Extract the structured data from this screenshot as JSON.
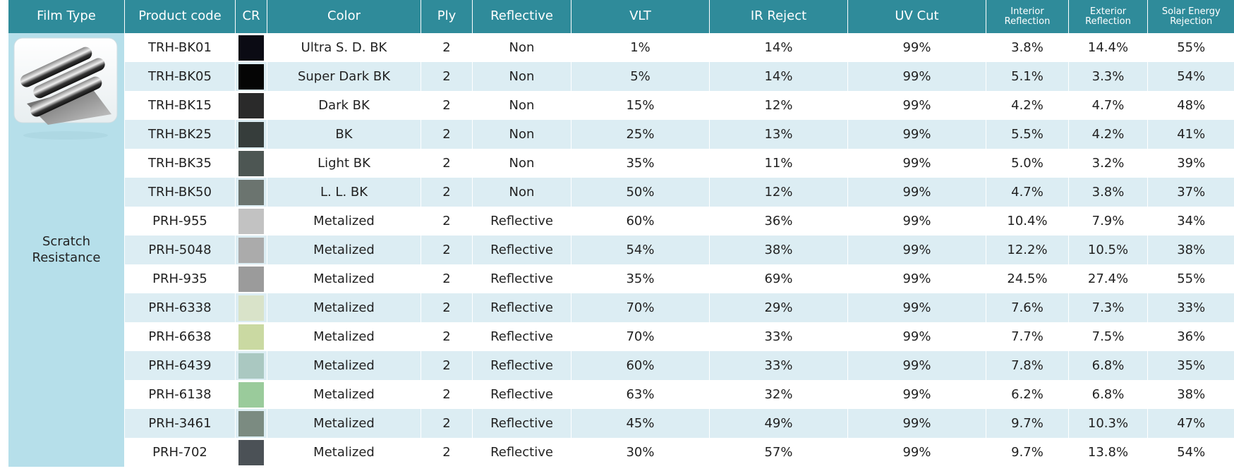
{
  "table": {
    "headers": [
      "Film Type",
      "Product code",
      "CR",
      "Color",
      "Ply",
      "Reflective",
      "VLT",
      "IR Reject",
      "UV Cut",
      "Interior Reflection",
      "Exterior Reflection",
      "Solar Energy Rejection"
    ],
    "film_type": "Scratch Resistance",
    "rows": [
      [
        "TRH-BK01",
        "Ultra S. D. BK",
        "2",
        "Non",
        "1%",
        "14%",
        "99%",
        "3.8%",
        "14.4%",
        "55%"
      ],
      [
        "TRH-BK05",
        "Super Dark BK",
        "2",
        "Non",
        "5%",
        "14%",
        "99%",
        "5.1%",
        "3.3%",
        "54%"
      ],
      [
        "TRH-BK15",
        "Dark BK",
        "2",
        "Non",
        "15%",
        "12%",
        "99%",
        "4.2%",
        "4.7%",
        "48%"
      ],
      [
        "TRH-BK25",
        "BK",
        "2",
        "Non",
        "25%",
        "13%",
        "99%",
        "5.5%",
        "4.2%",
        "41%"
      ],
      [
        "TRH-BK35",
        "Light BK",
        "2",
        "Non",
        "35%",
        "11%",
        "99%",
        "5.0%",
        "3.2%",
        "39%"
      ],
      [
        "TRH-BK50",
        "L. L. BK",
        "2",
        "Non",
        "50%",
        "12%",
        "99%",
        "4.7%",
        "3.8%",
        "37%"
      ],
      [
        "PRH-955",
        "Metalized",
        "2",
        "Reflective",
        "60%",
        "36%",
        "99%",
        "10.4%",
        "7.9%",
        "34%"
      ],
      [
        "PRH-5048",
        "Metalized",
        "2",
        "Reflective",
        "54%",
        "38%",
        "99%",
        "12.2%",
        "10.5%",
        "38%"
      ],
      [
        "PRH-935",
        "Metalized",
        "2",
        "Reflective",
        "35%",
        "69%",
        "99%",
        "24.5%",
        "27.4%",
        "55%"
      ],
      [
        "PRH-6338",
        "Metalized",
        "2",
        "Reflective",
        "70%",
        "29%",
        "99%",
        "7.6%",
        "7.3%",
        "33%"
      ],
      [
        "PRH-6638",
        "Metalized",
        "2",
        "Reflective",
        "70%",
        "33%",
        "99%",
        "7.7%",
        "7.5%",
        "36%"
      ],
      [
        "PRH-6439",
        "Metalized",
        "2",
        "Reflective",
        "60%",
        "33%",
        "99%",
        "7.8%",
        "6.8%",
        "35%"
      ],
      [
        "PRH-6138",
        "Metalized",
        "2",
        "Reflective",
        "63%",
        "32%",
        "99%",
        "6.2%",
        "6.8%",
        "38%"
      ],
      [
        "PRH-3461",
        "Metalized",
        "2",
        "Reflective",
        "45%",
        "49%",
        "99%",
        "9.7%",
        "10.3%",
        "47%"
      ],
      [
        "PRH-702",
        "Metalized",
        "2",
        "Reflective",
        "30%",
        "57%",
        "99%",
        "9.7%",
        "13.8%",
        "54%"
      ]
    ],
    "swatches": [
      "#0b0b14",
      "#050505",
      "#2a2a2a",
      "#363d3b",
      "#4d5653",
      "#6b746f",
      "#c2c2c2",
      "#ababab",
      "#9b9b9b",
      "#d9e3c9",
      "#cad9a2",
      "#aac8c1",
      "#9acb9b",
      "#7b8b81",
      "#4b5156"
    ]
  }
}
